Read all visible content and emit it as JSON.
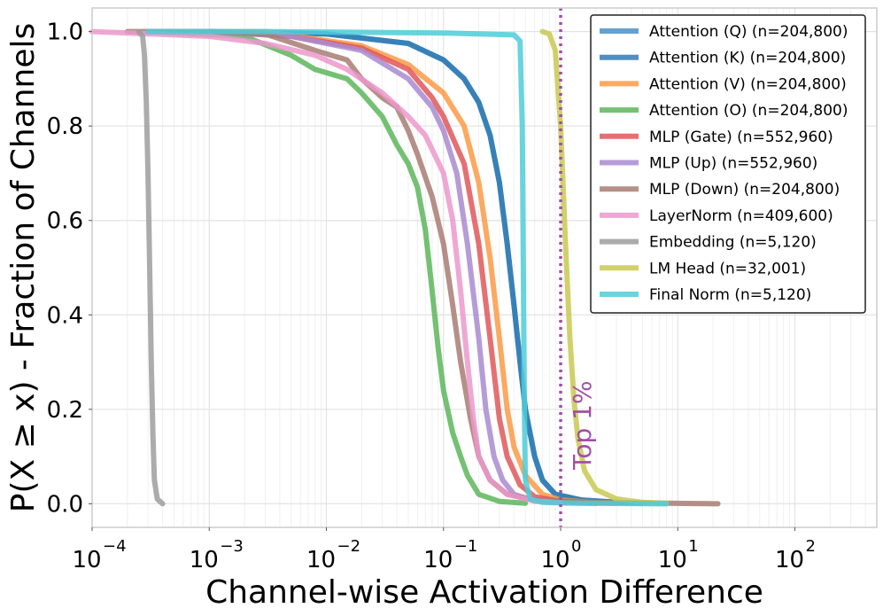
{
  "chart_data": {
    "type": "line",
    "title": "",
    "xlabel": "Channel-wise Activation Difference",
    "ylabel": "P(X ≥ x) - Fraction of Channels",
    "xscale": "log",
    "xlim": [
      0.0001,
      500
    ],
    "ylim": [
      -0.05,
      1.05
    ],
    "grid": true,
    "legend_position": "top-right",
    "x_ticks": [
      {
        "base": "10",
        "exp": "−4",
        "value": 0.0001
      },
      {
        "base": "10",
        "exp": "−3",
        "value": 0.001
      },
      {
        "base": "10",
        "exp": "−2",
        "value": 0.01
      },
      {
        "base": "10",
        "exp": "−1",
        "value": 0.1
      },
      {
        "base": "10",
        "exp": "0",
        "value": 1
      },
      {
        "base": "10",
        "exp": "1",
        "value": 10
      },
      {
        "base": "10",
        "exp": "2",
        "value": 100
      }
    ],
    "y_ticks": [
      {
        "label": "0.0",
        "value": 0.0
      },
      {
        "label": "0.2",
        "value": 0.2
      },
      {
        "label": "0.4",
        "value": 0.4
      },
      {
        "label": "0.6",
        "value": 0.6
      },
      {
        "label": "0.8",
        "value": 0.8
      },
      {
        "label": "1.0",
        "value": 1.0
      }
    ],
    "threshold": {
      "label": "Top 1%",
      "x": 1.0,
      "color": "#a04fa6"
    },
    "series": [
      {
        "name": "Attention (Q) (n=204,800)",
        "color": "#4a90c8",
        "points": [
          [
            0.001,
            1
          ],
          [
            0.01,
            0.995
          ],
          [
            0.05,
            0.975
          ],
          [
            0.1,
            0.94
          ],
          [
            0.15,
            0.9
          ],
          [
            0.2,
            0.85
          ],
          [
            0.25,
            0.78
          ],
          [
            0.3,
            0.68
          ],
          [
            0.35,
            0.55
          ],
          [
            0.4,
            0.42
          ],
          [
            0.45,
            0.3
          ],
          [
            0.5,
            0.2
          ],
          [
            0.6,
            0.1
          ],
          [
            0.7,
            0.05
          ],
          [
            0.9,
            0.02
          ],
          [
            1.5,
            0.008
          ],
          [
            3,
            0.003
          ],
          [
            5,
            0.001
          ]
        ]
      },
      {
        "name": "Attention (K) (n=204,800)",
        "color": "#2f7bb4",
        "points": [
          [
            0.001,
            1
          ],
          [
            0.01,
            0.995
          ],
          [
            0.05,
            0.975
          ],
          [
            0.1,
            0.94
          ],
          [
            0.15,
            0.9
          ],
          [
            0.2,
            0.85
          ],
          [
            0.25,
            0.78
          ],
          [
            0.3,
            0.68
          ],
          [
            0.35,
            0.55
          ],
          [
            0.4,
            0.42
          ],
          [
            0.45,
            0.3
          ],
          [
            0.5,
            0.2
          ],
          [
            0.6,
            0.1
          ],
          [
            0.7,
            0.05
          ],
          [
            0.9,
            0.02
          ],
          [
            1.5,
            0.008
          ],
          [
            3,
            0.003
          ],
          [
            5,
            0.001
          ]
        ]
      },
      {
        "name": "Attention (V) (n=204,800)",
        "color": "#fb9a45",
        "points": [
          [
            0.0003,
            1
          ],
          [
            0.003,
            1
          ],
          [
            0.02,
            0.97
          ],
          [
            0.05,
            0.93
          ],
          [
            0.1,
            0.87
          ],
          [
            0.15,
            0.8
          ],
          [
            0.2,
            0.68
          ],
          [
            0.25,
            0.52
          ],
          [
            0.3,
            0.35
          ],
          [
            0.35,
            0.2
          ],
          [
            0.4,
            0.12
          ],
          [
            0.5,
            0.06
          ],
          [
            0.7,
            0.02
          ],
          [
            1,
            0.008
          ],
          [
            2,
            0.002
          ],
          [
            3,
            0.001
          ]
        ]
      },
      {
        "name": "Attention (O) (n=204,800)",
        "color": "#5cb65c",
        "points": [
          [
            0.0003,
            1
          ],
          [
            0.002,
            0.99
          ],
          [
            0.005,
            0.95
          ],
          [
            0.008,
            0.92
          ],
          [
            0.015,
            0.9
          ],
          [
            0.02,
            0.87
          ],
          [
            0.03,
            0.82
          ],
          [
            0.04,
            0.76
          ],
          [
            0.05,
            0.72
          ],
          [
            0.06,
            0.67
          ],
          [
            0.07,
            0.58
          ],
          [
            0.08,
            0.45
          ],
          [
            0.09,
            0.33
          ],
          [
            0.1,
            0.24
          ],
          [
            0.12,
            0.15
          ],
          [
            0.14,
            0.1
          ],
          [
            0.16,
            0.06
          ],
          [
            0.2,
            0.02
          ],
          [
            0.3,
            0.005
          ],
          [
            0.5,
            0.001
          ]
        ]
      },
      {
        "name": "MLP (Gate) (n=552,960)",
        "color": "#e15759",
        "points": [
          [
            0.001,
            1
          ],
          [
            0.005,
            0.99
          ],
          [
            0.02,
            0.965
          ],
          [
            0.05,
            0.92
          ],
          [
            0.08,
            0.86
          ],
          [
            0.1,
            0.82
          ],
          [
            0.15,
            0.72
          ],
          [
            0.2,
            0.55
          ],
          [
            0.25,
            0.35
          ],
          [
            0.3,
            0.18
          ],
          [
            0.35,
            0.1
          ],
          [
            0.45,
            0.04
          ],
          [
            0.6,
            0.015
          ],
          [
            1,
            0.005
          ],
          [
            2,
            0.001
          ]
        ]
      },
      {
        "name": "MLP (Up) (n=552,960)",
        "color": "#a98bd0",
        "points": [
          [
            0.001,
            1
          ],
          [
            0.005,
            0.99
          ],
          [
            0.02,
            0.96
          ],
          [
            0.05,
            0.9
          ],
          [
            0.08,
            0.84
          ],
          [
            0.1,
            0.79
          ],
          [
            0.13,
            0.7
          ],
          [
            0.16,
            0.55
          ],
          [
            0.2,
            0.35
          ],
          [
            0.23,
            0.2
          ],
          [
            0.27,
            0.1
          ],
          [
            0.32,
            0.05
          ],
          [
            0.4,
            0.02
          ],
          [
            0.6,
            0.006
          ],
          [
            1,
            0.002
          ],
          [
            2,
            0.001
          ]
        ]
      },
      {
        "name": "MLP (Down) (n=204,800)",
        "color": "#a87c73",
        "points": [
          [
            0.0002,
            1
          ],
          [
            0.001,
            1
          ],
          [
            0.003,
            0.995
          ],
          [
            0.008,
            0.96
          ],
          [
            0.015,
            0.94
          ],
          [
            0.02,
            0.9
          ],
          [
            0.03,
            0.86
          ],
          [
            0.04,
            0.84
          ],
          [
            0.05,
            0.79
          ],
          [
            0.06,
            0.74
          ],
          [
            0.08,
            0.65
          ],
          [
            0.1,
            0.55
          ],
          [
            0.12,
            0.42
          ],
          [
            0.14,
            0.3
          ],
          [
            0.17,
            0.18
          ],
          [
            0.2,
            0.1
          ],
          [
            0.25,
            0.05
          ],
          [
            0.35,
            0.02
          ],
          [
            0.6,
            0.008
          ],
          [
            2,
            0.003
          ],
          [
            8,
            0.001
          ],
          [
            22,
            0
          ]
        ]
      },
      {
        "name": "LayerNorm (n=409,600)",
        "color": "#ec98cb",
        "points": [
          [
            0.0001,
            1
          ],
          [
            0.001,
            0.99
          ],
          [
            0.003,
            0.975
          ],
          [
            0.008,
            0.95
          ],
          [
            0.015,
            0.92
          ],
          [
            0.03,
            0.87
          ],
          [
            0.05,
            0.82
          ],
          [
            0.07,
            0.78
          ],
          [
            0.1,
            0.7
          ],
          [
            0.12,
            0.6
          ],
          [
            0.14,
            0.45
          ],
          [
            0.16,
            0.3
          ],
          [
            0.18,
            0.18
          ],
          [
            0.2,
            0.1
          ],
          [
            0.25,
            0.05
          ],
          [
            0.35,
            0.02
          ],
          [
            0.6,
            0.006
          ],
          [
            1,
            0.002
          ]
        ]
      },
      {
        "name": "Embedding (n=5,120)",
        "color": "#9e9e9e",
        "points": [
          [
            0.00025,
            1
          ],
          [
            0.00027,
            0.99
          ],
          [
            0.00028,
            0.95
          ],
          [
            0.00029,
            0.85
          ],
          [
            0.0003,
            0.7
          ],
          [
            0.00031,
            0.5
          ],
          [
            0.00032,
            0.3
          ],
          [
            0.00033,
            0.15
          ],
          [
            0.00034,
            0.05
          ],
          [
            0.00036,
            0.01
          ],
          [
            0.0004,
            0
          ]
        ]
      },
      {
        "name": "LM Head (n=32,001)",
        "color": "#c9c951",
        "points": [
          [
            0.7,
            1
          ],
          [
            0.8,
            0.995
          ],
          [
            0.9,
            0.96
          ],
          [
            1,
            0.8
          ],
          [
            1.1,
            0.55
          ],
          [
            1.2,
            0.35
          ],
          [
            1.3,
            0.22
          ],
          [
            1.4,
            0.14
          ],
          [
            1.6,
            0.07
          ],
          [
            2,
            0.03
          ],
          [
            3,
            0.01
          ],
          [
            5,
            0.003
          ],
          [
            8,
            0.001
          ]
        ]
      },
      {
        "name": "Final Norm (n=5,120)",
        "color": "#4dcdd8",
        "points": [
          [
            0.0003,
            1
          ],
          [
            0.003,
            1
          ],
          [
            0.1,
            0.997
          ],
          [
            0.4,
            0.993
          ],
          [
            0.45,
            0.98
          ],
          [
            0.47,
            0.8
          ],
          [
            0.48,
            0.5
          ],
          [
            0.49,
            0.2
          ],
          [
            0.5,
            0.05
          ],
          [
            0.55,
            0.01
          ],
          [
            0.7,
            0.003
          ],
          [
            1.5,
            0.001
          ],
          [
            8,
            0
          ]
        ]
      }
    ]
  }
}
